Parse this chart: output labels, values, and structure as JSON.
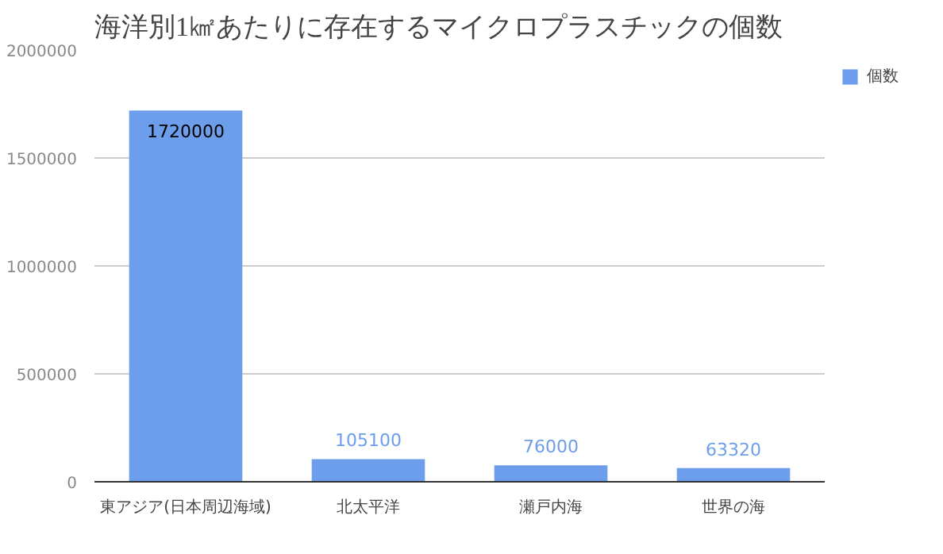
{
  "chart_data": {
    "type": "bar",
    "title": "海洋別1㎢あたりに存在するマイクロプラスチックの個数",
    "categories": [
      "東アジア(日本周辺海域)",
      "北太平洋",
      "瀬戸内海",
      "世界の海"
    ],
    "series": [
      {
        "name": "個数",
        "color": "#6d9eeb",
        "values": [
          1720000,
          105100,
          76000,
          63320
        ]
      }
    ],
    "ylim": [
      0,
      2000000
    ],
    "yticks": [
      0,
      500000,
      1000000,
      1500000,
      2000000
    ],
    "grid": "y",
    "legend": "top right",
    "data_labels": true
  }
}
